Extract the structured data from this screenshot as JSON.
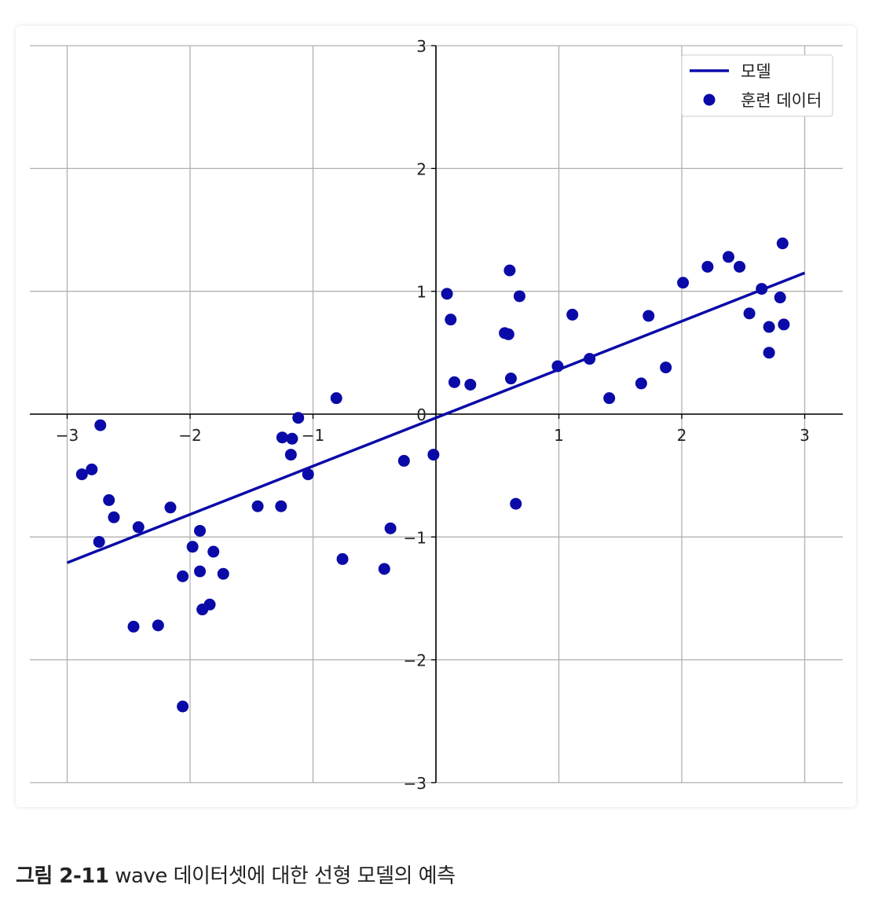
{
  "chart_data": {
    "type": "scatter",
    "xlim": [
      -3.3,
      3.3
    ],
    "ylim": [
      -3,
      3
    ],
    "xticks": [
      -3,
      -2,
      -1,
      0,
      1,
      2,
      3
    ],
    "yticks": [
      -3,
      -2,
      -1,
      0,
      1,
      2,
      3
    ],
    "xtick_labels": [
      "−3",
      "−2",
      "−1",
      "0",
      "1",
      "2",
      "3"
    ],
    "ytick_labels": [
      "−3",
      "−2",
      "−1",
      "0",
      "1",
      "2",
      "3"
    ],
    "grid": true,
    "legend_position": "top-right",
    "colors": {
      "points": "#0a0aa8",
      "line": "#0a0aa8",
      "grid": "#b0b0b0",
      "axis": "#000000"
    },
    "series": [
      {
        "name": "모델",
        "kind": "line",
        "x": [
          -3.0,
          3.0
        ],
        "y": [
          -1.21,
          1.15
        ]
      },
      {
        "name": "훈련 데이터",
        "kind": "scatter",
        "points": [
          [
            -2.88,
            -0.49
          ],
          [
            -2.8,
            -0.45
          ],
          [
            -2.73,
            -0.09
          ],
          [
            -2.74,
            -1.04
          ],
          [
            -2.66,
            -0.7
          ],
          [
            -2.62,
            -0.84
          ],
          [
            -2.42,
            -0.92
          ],
          [
            -2.46,
            -1.73
          ],
          [
            -2.26,
            -1.72
          ],
          [
            -2.16,
            -0.76
          ],
          [
            -2.06,
            -1.32
          ],
          [
            -2.06,
            -2.38
          ],
          [
            -1.98,
            -1.08
          ],
          [
            -1.92,
            -0.95
          ],
          [
            -1.92,
            -1.28
          ],
          [
            -1.9,
            -1.59
          ],
          [
            -1.84,
            -1.55
          ],
          [
            -1.81,
            -1.12
          ],
          [
            -1.73,
            -1.3
          ],
          [
            -1.45,
            -0.75
          ],
          [
            -1.26,
            -0.75
          ],
          [
            -1.25,
            -0.19
          ],
          [
            -1.17,
            -0.2
          ],
          [
            -1.18,
            -0.33
          ],
          [
            -1.12,
            -0.03
          ],
          [
            -1.04,
            -0.49
          ],
          [
            -0.81,
            0.13
          ],
          [
            -0.76,
            -1.18
          ],
          [
            -0.42,
            -1.26
          ],
          [
            -0.37,
            -0.93
          ],
          [
            -0.26,
            -0.38
          ],
          [
            -0.02,
            -0.33
          ],
          [
            0.09,
            0.98
          ],
          [
            0.12,
            0.77
          ],
          [
            0.15,
            0.26
          ],
          [
            0.28,
            0.24
          ],
          [
            0.56,
            0.66
          ],
          [
            0.59,
            0.65
          ],
          [
            0.6,
            1.17
          ],
          [
            0.61,
            0.29
          ],
          [
            0.65,
            -0.73
          ],
          [
            0.68,
            0.96
          ],
          [
            0.99,
            0.39
          ],
          [
            1.11,
            0.81
          ],
          [
            1.25,
            0.45
          ],
          [
            1.41,
            0.13
          ],
          [
            1.67,
            0.25
          ],
          [
            1.73,
            0.8
          ],
          [
            1.87,
            0.38
          ],
          [
            2.01,
            1.07
          ],
          [
            2.21,
            1.2
          ],
          [
            2.38,
            1.28
          ],
          [
            2.47,
            1.2
          ],
          [
            2.55,
            0.82
          ],
          [
            2.65,
            1.02
          ],
          [
            2.71,
            0.5
          ],
          [
            2.71,
            0.71
          ],
          [
            2.8,
            0.95
          ],
          [
            2.82,
            1.39
          ],
          [
            2.83,
            0.73
          ]
        ]
      }
    ]
  },
  "caption": {
    "label": "그림 2-11",
    "text": " wave 데이터셋에 대한 선형 모델의 예측"
  }
}
